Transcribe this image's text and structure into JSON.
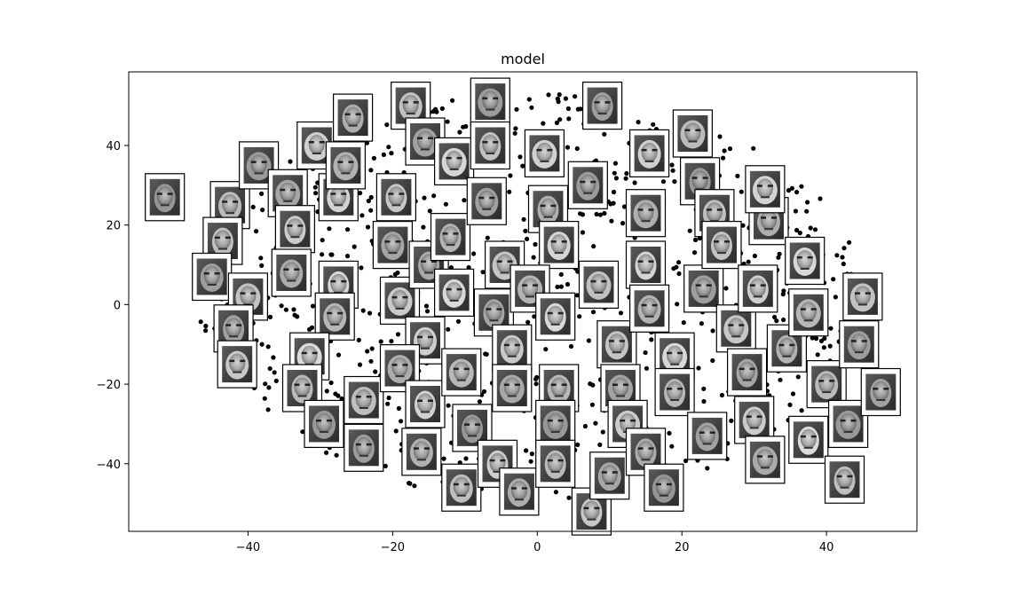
{
  "chart_data": {
    "type": "scatter",
    "title": "model",
    "xlabel": "",
    "ylabel": "",
    "xlim": [
      -56.5,
      52.5
    ],
    "ylim": [
      -57,
      58.5
    ],
    "x_ticks": [
      -40,
      -20,
      0,
      20,
      40
    ],
    "y_ticks": [
      -40,
      -20,
      0,
      20,
      40
    ],
    "x_tick_labels": [
      "−40",
      "−20",
      "0",
      "20",
      "40"
    ],
    "y_tick_labels": [
      "−40",
      "−20",
      "0",
      "20",
      "40"
    ],
    "grid": false,
    "legend": "none",
    "point_color": "#000000",
    "point_count_estimate": 900,
    "point_cloud": {
      "description_region": "roughly elliptical cloud",
      "x_range": [
        -47,
        44
      ],
      "y_range": [
        -48,
        52
      ]
    },
    "face_thumbnails": [
      {
        "x": -51.5,
        "y": 27
      },
      {
        "x": -42.5,
        "y": 25
      },
      {
        "x": -38.5,
        "y": 35
      },
      {
        "x": -43.5,
        "y": 16
      },
      {
        "x": -45,
        "y": 7
      },
      {
        "x": -40,
        "y": 2
      },
      {
        "x": -42,
        "y": -6
      },
      {
        "x": -41.5,
        "y": -15
      },
      {
        "x": -34.5,
        "y": 28
      },
      {
        "x": -33.5,
        "y": 19
      },
      {
        "x": -34,
        "y": 8
      },
      {
        "x": -30.5,
        "y": 40
      },
      {
        "x": -25.5,
        "y": 47
      },
      {
        "x": -27.5,
        "y": 27
      },
      {
        "x": -26.5,
        "y": 35
      },
      {
        "x": -27.5,
        "y": 5
      },
      {
        "x": -28,
        "y": -3
      },
      {
        "x": -31.5,
        "y": -13
      },
      {
        "x": -32.5,
        "y": -21
      },
      {
        "x": -29.5,
        "y": -30
      },
      {
        "x": -24,
        "y": -24
      },
      {
        "x": -24,
        "y": -36
      },
      {
        "x": -17.5,
        "y": 50
      },
      {
        "x": -15.5,
        "y": 41
      },
      {
        "x": -19.5,
        "y": 27
      },
      {
        "x": -20,
        "y": 15
      },
      {
        "x": -19,
        "y": 1
      },
      {
        "x": -15,
        "y": 10
      },
      {
        "x": -15.5,
        "y": -9
      },
      {
        "x": -19,
        "y": -16
      },
      {
        "x": -15.5,
        "y": -25
      },
      {
        "x": -16,
        "y": -37
      },
      {
        "x": -11.5,
        "y": 36
      },
      {
        "x": -12,
        "y": 17
      },
      {
        "x": -11.5,
        "y": 3
      },
      {
        "x": -10.5,
        "y": -17
      },
      {
        "x": -9,
        "y": -31
      },
      {
        "x": -10.5,
        "y": -46
      },
      {
        "x": -6.5,
        "y": 51
      },
      {
        "x": -6.5,
        "y": 40
      },
      {
        "x": -7,
        "y": 26
      },
      {
        "x": -4.5,
        "y": 10
      },
      {
        "x": -6,
        "y": -2
      },
      {
        "x": -3.5,
        "y": -11
      },
      {
        "x": -3.5,
        "y": -21
      },
      {
        "x": -5.5,
        "y": -40
      },
      {
        "x": -2.5,
        "y": -47
      },
      {
        "x": 1,
        "y": 38
      },
      {
        "x": 1.5,
        "y": 24
      },
      {
        "x": 3,
        "y": 15
      },
      {
        "x": -1,
        "y": 4
      },
      {
        "x": 2.5,
        "y": -3
      },
      {
        "x": 3,
        "y": -21
      },
      {
        "x": 2.5,
        "y": -30
      },
      {
        "x": 2.5,
        "y": -40
      },
      {
        "x": 7,
        "y": 30
      },
      {
        "x": 8.5,
        "y": 5
      },
      {
        "x": 9,
        "y": 50
      },
      {
        "x": 11,
        "y": -10
      },
      {
        "x": 11.5,
        "y": -21
      },
      {
        "x": 7.5,
        "y": -52
      },
      {
        "x": 10,
        "y": -43
      },
      {
        "x": 12.5,
        "y": -30
      },
      {
        "x": 15,
        "y": -37
      },
      {
        "x": 15.5,
        "y": 38
      },
      {
        "x": 15,
        "y": 23
      },
      {
        "x": 15,
        "y": 10
      },
      {
        "x": 15.5,
        "y": -1
      },
      {
        "x": 19,
        "y": -13
      },
      {
        "x": 19,
        "y": -22
      },
      {
        "x": 17.5,
        "y": -46
      },
      {
        "x": 21.5,
        "y": 43
      },
      {
        "x": 22.5,
        "y": 31
      },
      {
        "x": 24.5,
        "y": 23
      },
      {
        "x": 23,
        "y": 4
      },
      {
        "x": 25.5,
        "y": 15
      },
      {
        "x": 23.5,
        "y": -33
      },
      {
        "x": 27.5,
        "y": -6
      },
      {
        "x": 29,
        "y": -17
      },
      {
        "x": 30,
        "y": -29
      },
      {
        "x": 31.5,
        "y": -39
      },
      {
        "x": 30.5,
        "y": 4
      },
      {
        "x": 32,
        "y": 21
      },
      {
        "x": 31.5,
        "y": 29
      },
      {
        "x": 34.5,
        "y": -11
      },
      {
        "x": 37,
        "y": 11
      },
      {
        "x": 37.5,
        "y": -2
      },
      {
        "x": 37.5,
        "y": -34
      },
      {
        "x": 40,
        "y": -20
      },
      {
        "x": 43,
        "y": -30
      },
      {
        "x": 42.5,
        "y": -44
      },
      {
        "x": 44.5,
        "y": -10
      },
      {
        "x": 45,
        "y": 2
      },
      {
        "x": 47.5,
        "y": -22
      }
    ]
  }
}
